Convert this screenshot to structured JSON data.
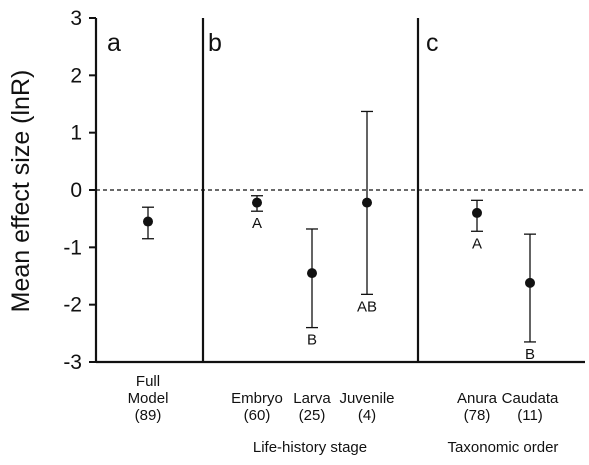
{
  "chart_data": {
    "type": "scatter",
    "ylabel": "Mean effect size (lnR)",
    "ylim": [
      -3,
      3
    ],
    "yticks": [
      -3,
      -2,
      -1,
      0,
      1,
      2,
      3
    ],
    "reference_line": 0,
    "panels": [
      {
        "letter": "a",
        "group_label": "",
        "points": [
          {
            "label_lines": [
              "Full",
              "Model",
              "(89)"
            ],
            "mean": -0.55,
            "lower": -0.85,
            "upper": -0.3,
            "letter": ""
          }
        ]
      },
      {
        "letter": "b",
        "group_label": "Life-history stage",
        "points": [
          {
            "label_lines": [
              "Embryo",
              "(60)"
            ],
            "mean": -0.22,
            "lower": -0.37,
            "upper": -0.1,
            "letter": "A"
          },
          {
            "label_lines": [
              "Larva",
              "(25)"
            ],
            "mean": -1.45,
            "lower": -2.4,
            "upper": -0.68,
            "letter": "B"
          },
          {
            "label_lines": [
              "Juvenile",
              "(4)"
            ],
            "mean": -0.22,
            "lower": -1.82,
            "upper": 1.37,
            "letter": "AB"
          }
        ]
      },
      {
        "letter": "c",
        "group_label": "Taxonomic order",
        "points": [
          {
            "label_lines": [
              "Anura",
              "(78)"
            ],
            "mean": -0.4,
            "lower": -0.72,
            "upper": -0.18,
            "letter": "A"
          },
          {
            "label_lines": [
              "Caudata",
              "(11)"
            ],
            "mean": -1.62,
            "lower": -2.65,
            "upper": -0.77,
            "letter": "B"
          }
        ]
      }
    ]
  }
}
